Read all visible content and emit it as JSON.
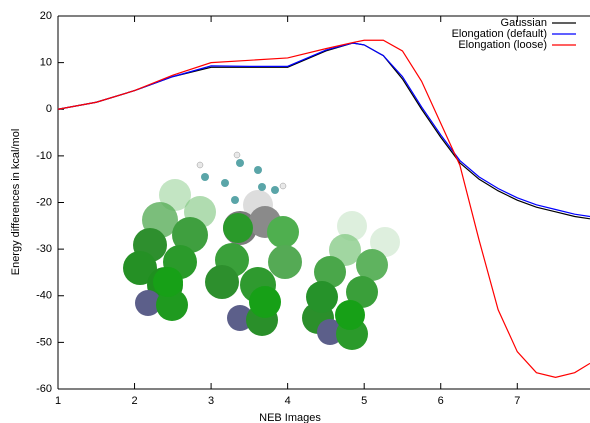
{
  "chart_data": {
    "type": "line",
    "x_label": "NEB Images",
    "y_label": "Energy differences in kcal/mol",
    "x": [
      1,
      1.5,
      2,
      2.5,
      3,
      3.5,
      4,
      4.5,
      4.85,
      5,
      5.25,
      5.5,
      5.75,
      6,
      6.25,
      6.5,
      6.75,
      7,
      7.25,
      7.5,
      7.75,
      7.95
    ],
    "series": [
      {
        "name": "Gaussian",
        "color": "#000000",
        "values": [
          0,
          1.5,
          4,
          7,
          9,
          9,
          9,
          12.5,
          14.2,
          13.8,
          11.5,
          6.5,
          0,
          -6,
          -11.5,
          -15,
          -17.5,
          -19.5,
          -21,
          -22,
          -23,
          -23.5
        ]
      },
      {
        "name": "Elongation (default)",
        "color": "#0000ff",
        "values": [
          0,
          1.5,
          4,
          7,
          9.3,
          9.2,
          9.2,
          12.7,
          14.2,
          13.8,
          11.5,
          7,
          0.5,
          -5.5,
          -11,
          -14.5,
          -17,
          -19,
          -20.5,
          -21.5,
          -22.5,
          -23
        ]
      },
      {
        "name": "Elongation (loose)",
        "color": "#ff0000",
        "values": [
          0,
          1.5,
          4,
          7.3,
          10,
          10.5,
          11,
          13,
          14.3,
          14.8,
          14.8,
          12.5,
          6,
          -3,
          -12,
          -28,
          -43,
          -52,
          -56.5,
          -57.5,
          -56.5,
          -54.5
        ]
      }
    ],
    "xlim": [
      1,
      7.95
    ],
    "ylim": [
      -60,
      20
    ],
    "xticks": [
      1,
      2,
      3,
      4,
      5,
      6,
      7
    ],
    "yticks": [
      -60,
      -50,
      -40,
      -30,
      -20,
      -10,
      0,
      10,
      20
    ],
    "legend": "upper right",
    "grid": false
  }
}
